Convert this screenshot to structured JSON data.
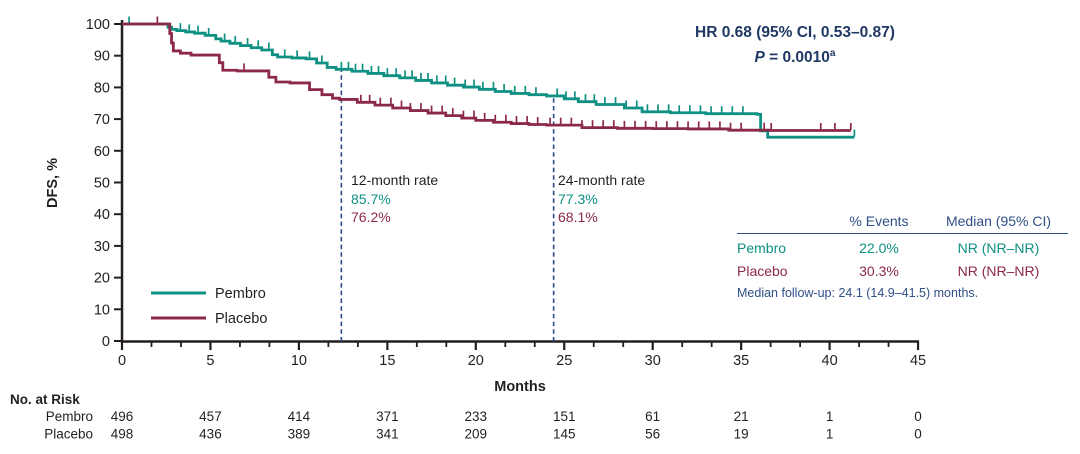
{
  "colors": {
    "pembro_teal": "#0e9083",
    "placebo_maroon": "#8c2949",
    "annotation_navy": "#1f3864",
    "table_navy": "#2f4f87",
    "dashed_line_navy": "#2b4c7e",
    "axis_black": "#231f20"
  },
  "hr_annotation": {
    "line1": "HR 0.68 (95% CI, 0.53–0.87)",
    "p_label": "P",
    "p_equals": " = 0.0010",
    "p_footnote_marker": "a"
  },
  "chart_data": {
    "type": "line",
    "subtype": "kaplan-meier-step",
    "title": "",
    "xlabel": "Months",
    "ylabel": "DFS, %",
    "xlim": [
      0,
      45
    ],
    "ylim": [
      0,
      100
    ],
    "x_major_ticks": [
      0,
      5,
      10,
      15,
      20,
      25,
      30,
      35,
      40,
      45
    ],
    "x_minor_ticks_per_major": 2,
    "y_ticks": [
      0,
      10,
      20,
      30,
      40,
      50,
      60,
      70,
      80,
      90,
      100
    ],
    "grid": false,
    "legend_position": "lower-left-inside",
    "series": [
      {
        "name": "Pembro",
        "color": "#0e9083",
        "points": [
          [
            0,
            100
          ],
          [
            2.55,
            100
          ],
          [
            2.6,
            99
          ],
          [
            2.8,
            98.3
          ],
          [
            3.1,
            97.9
          ],
          [
            3.6,
            97.5
          ],
          [
            4.1,
            97.1
          ],
          [
            4.7,
            96.4
          ],
          [
            5.3,
            95.3
          ],
          [
            5.6,
            94.6
          ],
          [
            6.1,
            93.9
          ],
          [
            6.7,
            93.2
          ],
          [
            7.3,
            92.5
          ],
          [
            7.9,
            91.8
          ],
          [
            8.5,
            90.3
          ],
          [
            8.8,
            89.6
          ],
          [
            9.6,
            89.3
          ],
          [
            10.4,
            89.0
          ],
          [
            11.0,
            87.7
          ],
          [
            11.6,
            86.3
          ],
          [
            12.1,
            85.7
          ],
          [
            13.0,
            85.1
          ],
          [
            13.9,
            84.4
          ],
          [
            14.8,
            83.7
          ],
          [
            15.7,
            83.0
          ],
          [
            16.6,
            82.2
          ],
          [
            17.5,
            81.4
          ],
          [
            18.4,
            80.7
          ],
          [
            19.3,
            80.1
          ],
          [
            20.2,
            79.4
          ],
          [
            21.1,
            78.7
          ],
          [
            22.0,
            78.1
          ],
          [
            23.0,
            77.7
          ],
          [
            24.0,
            77.3
          ],
          [
            25.0,
            76.4
          ],
          [
            25.8,
            75.5
          ],
          [
            26.8,
            74.6
          ],
          [
            28.4,
            73.5
          ],
          [
            29.4,
            72.3
          ],
          [
            31.0,
            72.0
          ],
          [
            33.0,
            71.7
          ],
          [
            35.9,
            71.5
          ],
          [
            36.1,
            66.3
          ],
          [
            36.5,
            64.3
          ],
          [
            41.4,
            64.3
          ]
        ],
        "censor_marks": [
          0.4,
          3.3,
          3.8,
          4.3,
          4.9,
          5.8,
          6.4,
          7.1,
          7.7,
          8.3,
          9.2,
          9.9,
          10.6,
          11.3,
          12.4,
          12.8,
          13.2,
          13.6,
          14.1,
          14.5,
          15.0,
          15.5,
          16.0,
          16.4,
          16.9,
          17.3,
          17.8,
          18.3,
          18.8,
          19.4,
          19.9,
          20.4,
          21.0,
          21.6,
          22.2,
          22.8,
          23.4,
          24.6,
          25.1,
          25.6,
          26.2,
          26.7,
          27.3,
          27.9,
          28.5,
          29.1,
          29.7,
          30.3,
          30.9,
          31.5,
          32.1,
          32.7,
          33.3,
          33.9,
          34.5,
          35.1,
          41.4
        ]
      },
      {
        "name": "Placebo",
        "color": "#8c2949",
        "points": [
          [
            0,
            100
          ],
          [
            2.65,
            100
          ],
          [
            2.7,
            97
          ],
          [
            2.8,
            94
          ],
          [
            2.9,
            91.5
          ],
          [
            3.3,
            90.8
          ],
          [
            3.9,
            90.2
          ],
          [
            5.5,
            87.8
          ],
          [
            5.7,
            85.4
          ],
          [
            6.5,
            85.2
          ],
          [
            8.3,
            83.2
          ],
          [
            8.7,
            81.7
          ],
          [
            9.5,
            81.4
          ],
          [
            10.6,
            79.3
          ],
          [
            11.3,
            77.7
          ],
          [
            11.9,
            76.6
          ],
          [
            12.3,
            76.2
          ],
          [
            13.3,
            75.3
          ],
          [
            14.3,
            74.4
          ],
          [
            15.3,
            73.5
          ],
          [
            16.3,
            72.7
          ],
          [
            17.3,
            71.9
          ],
          [
            18.3,
            71.1
          ],
          [
            19.2,
            70.3
          ],
          [
            20.0,
            69.6
          ],
          [
            21.0,
            69.0
          ],
          [
            22.0,
            68.6
          ],
          [
            23.0,
            68.3
          ],
          [
            24.0,
            68.1
          ],
          [
            26.0,
            67.3
          ],
          [
            28.0,
            67.1
          ],
          [
            30.0,
            67.0
          ],
          [
            32.0,
            66.9
          ],
          [
            34.3,
            66.5
          ],
          [
            36.6,
            66.4
          ],
          [
            41.2,
            66.4
          ]
        ],
        "censor_marks": [
          2.0,
          6.9,
          13.5,
          14.0,
          14.6,
          15.2,
          15.8,
          16.3,
          16.9,
          17.5,
          18.1,
          18.7,
          19.3,
          19.9,
          20.5,
          21.1,
          21.7,
          22.3,
          22.9,
          23.5,
          24.2,
          24.8,
          25.4,
          26.0,
          26.6,
          27.2,
          27.8,
          28.4,
          29.0,
          29.6,
          30.2,
          30.8,
          31.4,
          32.0,
          32.6,
          33.2,
          33.8,
          34.4,
          35.0,
          36.3,
          36.7,
          39.5,
          40.3,
          41.2
        ]
      }
    ],
    "timepoints": [
      {
        "label": "12-month rate",
        "month_line": 12.4,
        "values": [
          {
            "series": "Pembro",
            "rate": "85.7%"
          },
          {
            "series": "Placebo",
            "rate": "76.2%"
          }
        ]
      },
      {
        "label": "24-month rate",
        "month_line": 24.4,
        "values": [
          {
            "series": "Pembro",
            "rate": "77.3%"
          },
          {
            "series": "Placebo",
            "rate": "68.1%"
          }
        ]
      }
    ]
  },
  "summary_table": {
    "headers": [
      "",
      "% Events",
      "Median (95% CI)"
    ],
    "rows": [
      {
        "name": "Pembro",
        "events": "22.0%",
        "median": "NR (NR–NR)"
      },
      {
        "name": "Placebo",
        "events": "30.3%",
        "median": "NR (NR–NR)"
      }
    ],
    "footnote": "Median follow-up: 24.1 (14.9–41.5) months."
  },
  "risk_table": {
    "title": "No. at Risk",
    "months": [
      0,
      5,
      10,
      15,
      20,
      25,
      30,
      35,
      40,
      45
    ],
    "rows": [
      {
        "name": "Pembro",
        "counts": [
          496,
          457,
          414,
          371,
          233,
          151,
          61,
          21,
          1,
          0
        ]
      },
      {
        "name": "Placebo",
        "counts": [
          498,
          436,
          389,
          341,
          209,
          145,
          56,
          19,
          1,
          0
        ]
      }
    ]
  },
  "legend": {
    "items": [
      {
        "label": "Pembro",
        "color": "#0e9083"
      },
      {
        "label": "Placebo",
        "color": "#8c2949"
      }
    ]
  }
}
